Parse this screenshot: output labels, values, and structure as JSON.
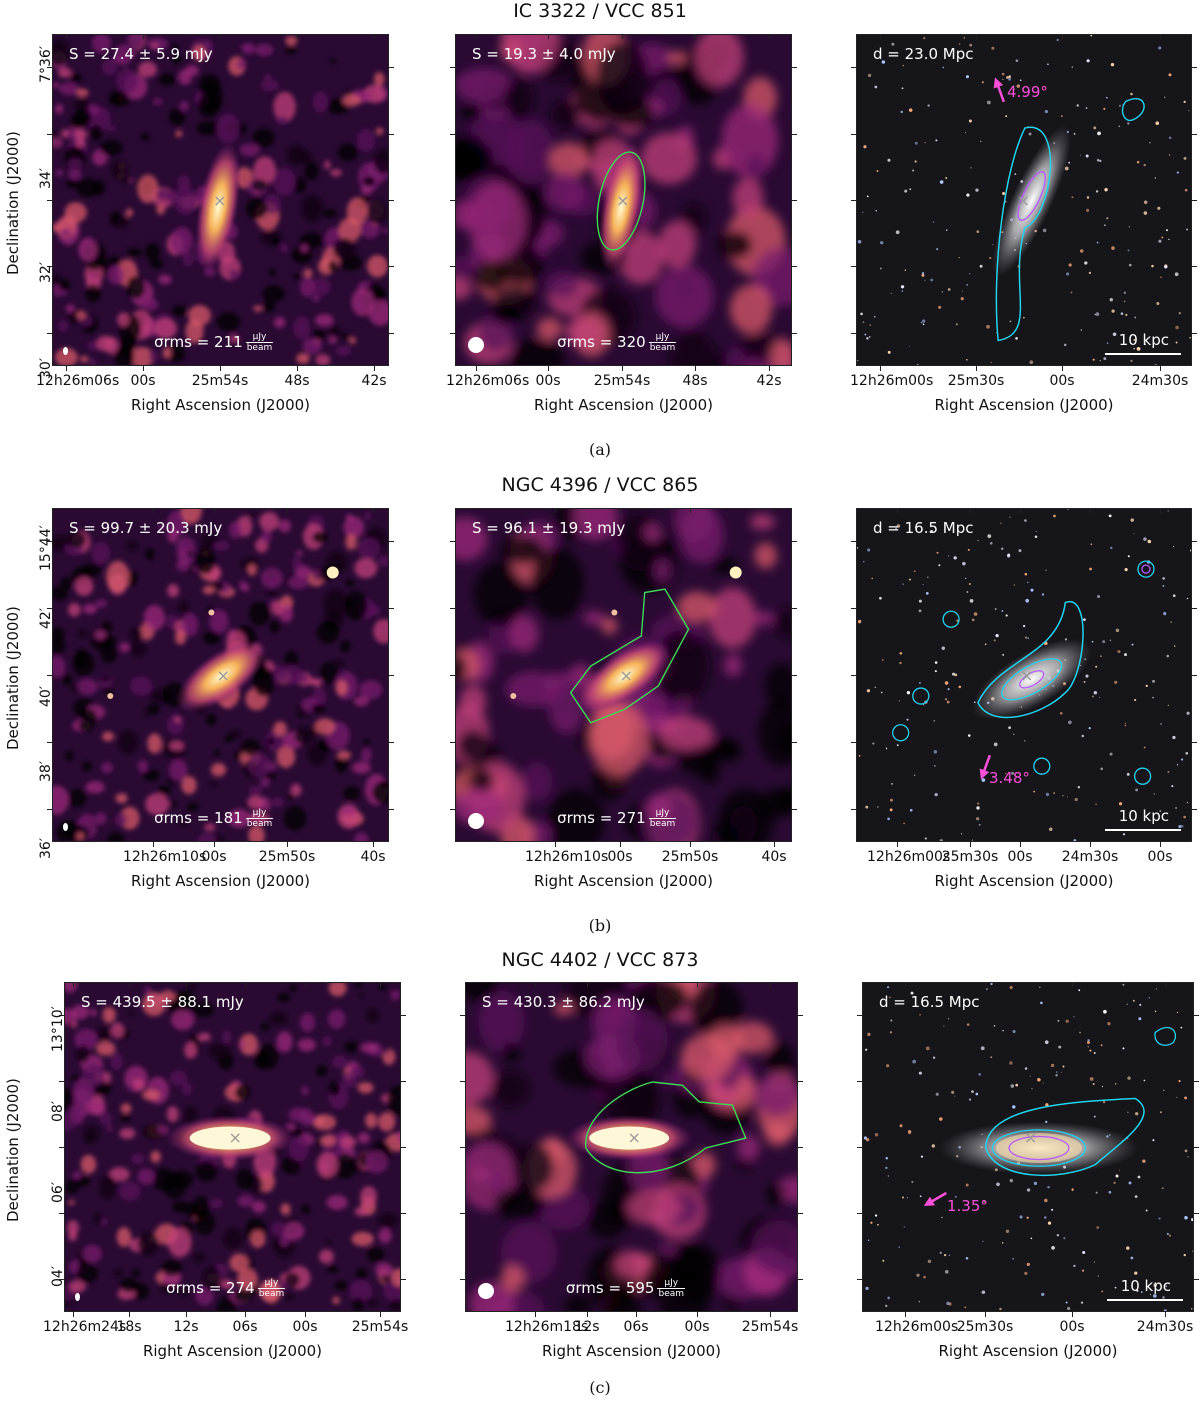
{
  "rows": [
    {
      "title": "IC 3322 / VCC 851",
      "caption": "(a)",
      "left": {
        "flux": "S = 27.4 ± 5.9 mJy",
        "rms_value": "211",
        "ylabel": "Declination (J2000)",
        "xlabel": "Right Ascension (J2000)",
        "yticks": [
          "7°36′",
          "34′",
          "32′",
          "30′"
        ],
        "xticks": [
          "12h26m06s",
          "00s",
          "25m54s",
          "48s",
          "42s"
        ]
      },
      "mid": {
        "flux": "S = 19.3 ± 4.0 mJy",
        "rms_value": "320",
        "xlabel": "Right Ascension (J2000)",
        "xticks": [
          "12h26m06s",
          "00s",
          "25m54s",
          "48s",
          "42s"
        ]
      },
      "right": {
        "distance": "d = 23.0 Mpc",
        "angle": "4.99°",
        "scale": "10 kpc",
        "xlabel": "Right Ascension (J2000)",
        "xticks": [
          "12h26m00s",
          "25m30s",
          "00s",
          "24m30s"
        ]
      }
    },
    {
      "title": "NGC 4396 / VCC 865",
      "caption": "(b)",
      "left": {
        "flux": "S = 99.7 ± 20.3 mJy",
        "rms_value": "181",
        "ylabel": "Declination (J2000)",
        "xlabel": "Right Ascension (J2000)",
        "yticks": [
          "15°44′",
          "42′",
          "40′",
          "38′",
          "36′"
        ],
        "xticks": [
          "12h26m10s",
          "00s",
          "25m50s",
          "40s"
        ]
      },
      "mid": {
        "flux": "S = 96.1 ± 19.3 mJy",
        "rms_value": "271",
        "xlabel": "Right Ascension (J2000)",
        "xticks": [
          "12h26m10s",
          "00s",
          "25m50s",
          "40s"
        ]
      },
      "right": {
        "distance": "d = 16.5 Mpc",
        "angle": "3.48°",
        "scale": "10 kpc",
        "xlabel": "Right Ascension (J2000)",
        "xticks": [
          "12h26m00s",
          "25m30s",
          "00s",
          "24m30s",
          "00s"
        ]
      }
    },
    {
      "title": "NGC 4402 / VCC 873",
      "caption": "(c)",
      "left": {
        "flux": "S = 439.5 ± 88.1 mJy",
        "rms_value": "274",
        "ylabel": "Declination (J2000)",
        "xlabel": "Right Ascension (J2000)",
        "yticks": [
          "13°10′",
          "08′",
          "06′",
          "04′"
        ],
        "xticks": [
          "12h26m24s",
          "18s",
          "12s",
          "06s",
          "00s",
          "25m54s"
        ]
      },
      "mid": {
        "flux": "S = 430.3 ± 86.2 mJy",
        "rms_value": "595",
        "xlabel": "Right Ascension (J2000)",
        "xticks": [
          "12h26m18s",
          "12s",
          "06s",
          "00s",
          "25m54s"
        ]
      },
      "right": {
        "distance": "d = 16.5 Mpc",
        "angle": "1.35°",
        "scale": "10 kpc",
        "xlabel": "Right Ascension (J2000)",
        "xticks": [
          "12h26m00s",
          "25m30s",
          "00s",
          "24m30s"
        ]
      }
    }
  ],
  "rms_prefix": "σrms = ",
  "unit_num": "μJy",
  "unit_den": "beam",
  "colors": {
    "contour_cyan": "#22d3ee",
    "contour_violet": "#b65cff",
    "aperture_green": "#3ddc57",
    "arrow_magenta": "#ff4fd8"
  }
}
